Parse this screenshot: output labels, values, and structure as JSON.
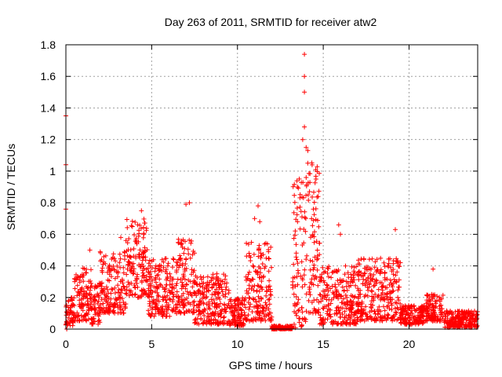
{
  "chart_data": {
    "type": "scatter",
    "title": "Day 263 of 2011, SRMTID for receiver atw2",
    "xlabel": "GPS time / hours",
    "ylabel": "SRMTID / TECUs",
    "xlim": [
      0,
      24
    ],
    "ylim": [
      0,
      1.8
    ],
    "xticks": [
      0,
      5,
      10,
      15,
      20
    ],
    "yticks": [
      0,
      0.2,
      0.4,
      0.6,
      0.8,
      1,
      1.2,
      1.4,
      1.6,
      1.8
    ],
    "ytick_labels": [
      "0",
      "0.2",
      "0.4",
      "0.6",
      "0.8",
      "1",
      "1.2",
      "1.4",
      "1.6",
      "1.8"
    ],
    "grid": true,
    "marker": "+",
    "color": "#ff0000",
    "series": [
      {
        "name": "SRMTID",
        "description": "dense scatter of several thousand '+' markers; values below summarize the envelope as (hour, typical value, spread) segments plus notable outliers",
        "envelope": [
          {
            "x0": 0.0,
            "x1": 0.5,
            "y_low": 0.02,
            "y_high": 0.2
          },
          {
            "x0": 0.5,
            "x1": 1.5,
            "y_low": 0.05,
            "y_high": 0.4
          },
          {
            "x0": 1.5,
            "x2": 2.0,
            "x1": 2.0,
            "y_low": 0.03,
            "y_high": 0.3
          },
          {
            "x0": 2.0,
            "x1": 3.5,
            "y_low": 0.1,
            "y_high": 0.5
          },
          {
            "x0": 3.5,
            "x1": 4.8,
            "y_low": 0.2,
            "y_high": 0.7
          },
          {
            "x0": 4.8,
            "x1": 6.5,
            "y_low": 0.08,
            "y_high": 0.45
          },
          {
            "x0": 6.5,
            "x1": 7.5,
            "y_low": 0.1,
            "y_high": 0.6
          },
          {
            "x0": 7.5,
            "x1": 9.5,
            "y_low": 0.03,
            "y_high": 0.35
          },
          {
            "x0": 9.5,
            "x1": 10.5,
            "y_low": 0.02,
            "y_high": 0.2
          },
          {
            "x0": 10.5,
            "x1": 12.0,
            "y_low": 0.05,
            "y_high": 0.55
          },
          {
            "x0": 12.0,
            "x1": 13.2,
            "y_low": 0.0,
            "y_high": 0.02
          },
          {
            "x0": 13.2,
            "x1": 14.0,
            "y_low": 0.0,
            "y_high": 0.95
          },
          {
            "x0": 14.0,
            "x1": 14.8,
            "y_low": 0.1,
            "y_high": 1.1
          },
          {
            "x0": 14.8,
            "x1": 17.0,
            "y_low": 0.03,
            "y_high": 0.4
          },
          {
            "x0": 17.0,
            "x1": 19.5,
            "y_low": 0.05,
            "y_high": 0.45
          },
          {
            "x0": 19.5,
            "x1": 21.0,
            "y_low": 0.03,
            "y_high": 0.15
          },
          {
            "x0": 21.0,
            "x1": 22.0,
            "y_low": 0.05,
            "y_high": 0.22
          },
          {
            "x0": 22.0,
            "x1": 24.0,
            "y_low": 0.01,
            "y_high": 0.12
          }
        ],
        "outliers": [
          [
            0.0,
            1.35
          ],
          [
            0.0,
            1.04
          ],
          [
            0.0,
            0.76
          ],
          [
            0.05,
            0.0
          ],
          [
            1.4,
            0.5
          ],
          [
            3.2,
            0.58
          ],
          [
            4.4,
            0.75
          ],
          [
            7.0,
            0.79
          ],
          [
            7.2,
            0.8
          ],
          [
            8.8,
            0.35
          ],
          [
            11.0,
            0.7
          ],
          [
            11.2,
            0.78
          ],
          [
            11.3,
            0.68
          ],
          [
            13.6,
            0.95
          ],
          [
            13.9,
            1.74
          ],
          [
            13.9,
            1.6
          ],
          [
            13.9,
            1.5
          ],
          [
            13.9,
            1.28
          ],
          [
            13.8,
            1.2
          ],
          [
            14.0,
            1.15
          ],
          [
            14.1,
            1.13
          ],
          [
            14.1,
            1.05
          ],
          [
            14.2,
            0.87
          ],
          [
            15.9,
            0.66
          ],
          [
            16.0,
            0.6
          ],
          [
            19.2,
            0.63
          ],
          [
            21.4,
            0.38
          ]
        ]
      }
    ]
  }
}
